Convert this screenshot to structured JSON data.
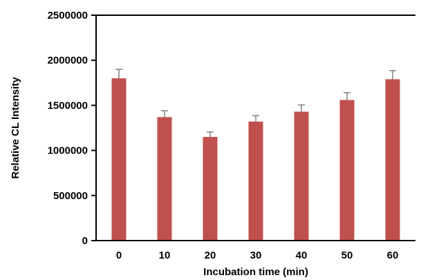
{
  "chart_data": {
    "type": "bar",
    "categories": [
      "0",
      "10",
      "20",
      "30",
      "40",
      "50",
      "60"
    ],
    "values": [
      1800000,
      1370000,
      1150000,
      1320000,
      1430000,
      1560000,
      1790000
    ],
    "error": [
      100000,
      70000,
      55000,
      65000,
      75000,
      80000,
      95000
    ],
    "xlabel": "Incubation time (min)",
    "ylabel": "Relative CL Intensity",
    "ylim": [
      0,
      2500000
    ],
    "yticks": [
      "0",
      "500000",
      "1000000",
      "1500000",
      "2000000",
      "2500000"
    ],
    "grid": false,
    "legend": "none",
    "bar_color": "#c0504d",
    "error_color": "#7f7f7f",
    "axis_color": "#000000"
  }
}
